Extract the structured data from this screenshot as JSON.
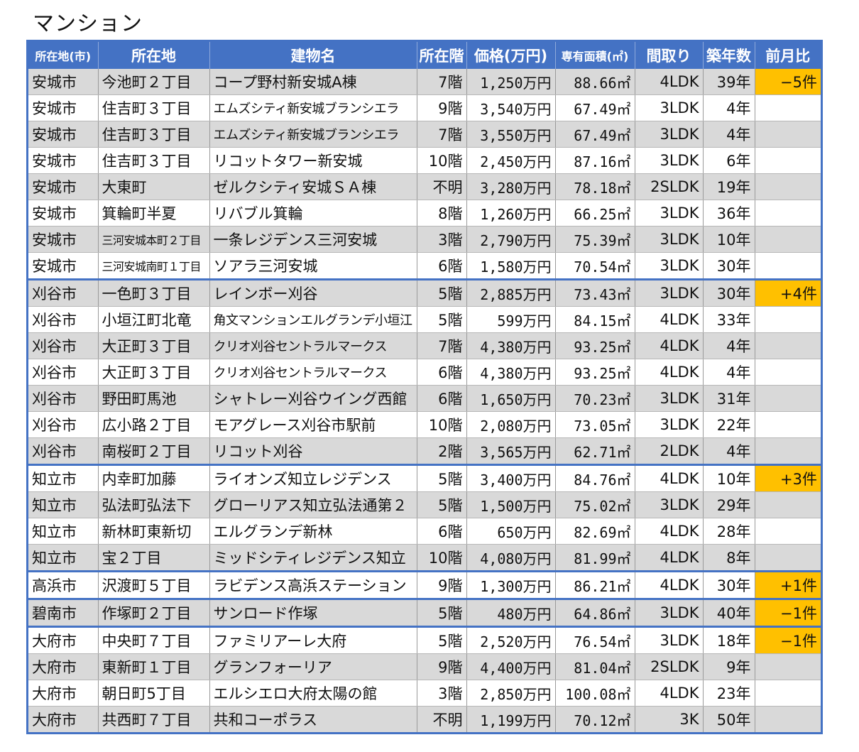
{
  "title": "マンション",
  "colors": {
    "header_bg": "#4472c4",
    "row_alt": "#d9d9d9",
    "highlight": "#ffc000"
  },
  "headers": [
    "所在地(市)",
    "所在地",
    "建物名",
    "所在階",
    "価格(万円)",
    "専有面積(㎡)",
    "間取り",
    "築年数",
    "前月比"
  ],
  "rows": [
    {
      "city": "安城市",
      "address": "今池町２丁目",
      "building": "コープ野村新安城A棟",
      "floor": "7階",
      "price": "1,250万円",
      "area": "88.66㎡",
      "layout": "4LDK",
      "age": "39年",
      "change": "−5件"
    },
    {
      "city": "安城市",
      "address": "住吉町３丁目",
      "building": "エムズシティ新安城ブランシエラ",
      "floor": "9階",
      "price": "3,540万円",
      "area": "67.49㎡",
      "layout": "3LDK",
      "age": "4年",
      "change": ""
    },
    {
      "city": "安城市",
      "address": "住吉町３丁目",
      "building": "エムズシティ新安城ブランシエラ",
      "floor": "7階",
      "price": "3,550万円",
      "area": "67.49㎡",
      "layout": "3LDK",
      "age": "4年",
      "change": ""
    },
    {
      "city": "安城市",
      "address": "住吉町３丁目",
      "building": "リコットタワー新安城",
      "floor": "10階",
      "price": "2,450万円",
      "area": "87.16㎡",
      "layout": "3LDK",
      "age": "6年",
      "change": ""
    },
    {
      "city": "安城市",
      "address": "大東町",
      "building": "ゼルクシティ安城ＳＡ棟",
      "floor": "不明",
      "price": "3,280万円",
      "area": "78.18㎡",
      "layout": "2SLDK",
      "age": "19年",
      "change": ""
    },
    {
      "city": "安城市",
      "address": "箕輪町半夏",
      "building": "リバブル箕輪",
      "floor": "8階",
      "price": "1,260万円",
      "area": "66.25㎡",
      "layout": "3LDK",
      "age": "36年",
      "change": ""
    },
    {
      "city": "安城市",
      "address": "三河安城本町２丁目",
      "building": "一条レジデンス三河安城",
      "floor": "3階",
      "price": "2,790万円",
      "area": "75.39㎡",
      "layout": "3LDK",
      "age": "10年",
      "change": ""
    },
    {
      "city": "安城市",
      "address": "三河安城南町１丁目",
      "building": "ソアラ三河安城",
      "floor": "6階",
      "price": "1,580万円",
      "area": "70.54㎡",
      "layout": "3LDK",
      "age": "30年",
      "change": ""
    },
    {
      "city": "刈谷市",
      "address": "一色町３丁目",
      "building": "レインボー刈谷",
      "floor": "5階",
      "price": "2,885万円",
      "area": "73.43㎡",
      "layout": "3LDK",
      "age": "30年",
      "change": "+4件"
    },
    {
      "city": "刈谷市",
      "address": "小垣江町北竜",
      "building": "角文マンションエルグランデ小垣江",
      "floor": "5階",
      "price": "599万円",
      "area": "84.15㎡",
      "layout": "4LDK",
      "age": "33年",
      "change": ""
    },
    {
      "city": "刈谷市",
      "address": "大正町３丁目",
      "building": "クリオ刈谷セントラルマークス",
      "floor": "7階",
      "price": "4,380万円",
      "area": "93.25㎡",
      "layout": "4LDK",
      "age": "4年",
      "change": ""
    },
    {
      "city": "刈谷市",
      "address": "大正町３丁目",
      "building": "クリオ刈谷セントラルマークス",
      "floor": "6階",
      "price": "4,380万円",
      "area": "93.25㎡",
      "layout": "4LDK",
      "age": "4年",
      "change": ""
    },
    {
      "city": "刈谷市",
      "address": "野田町馬池",
      "building": "シャトレー刈谷ウイング西館",
      "floor": "6階",
      "price": "1,650万円",
      "area": "70.23㎡",
      "layout": "3LDK",
      "age": "31年",
      "change": ""
    },
    {
      "city": "刈谷市",
      "address": "広小路２丁目",
      "building": "モアグレース刈谷市駅前",
      "floor": "10階",
      "price": "2,080万円",
      "area": "73.05㎡",
      "layout": "3LDK",
      "age": "22年",
      "change": ""
    },
    {
      "city": "刈谷市",
      "address": "南桜町２丁目",
      "building": "リコット刈谷",
      "floor": "2階",
      "price": "3,565万円",
      "area": "62.71㎡",
      "layout": "2LDK",
      "age": "4年",
      "change": ""
    },
    {
      "city": "知立市",
      "address": "内幸町加藤",
      "building": "ライオンズ知立レジデンス",
      "floor": "5階",
      "price": "3,400万円",
      "area": "84.76㎡",
      "layout": "4LDK",
      "age": "10年",
      "change": "+3件"
    },
    {
      "city": "知立市",
      "address": "弘法町弘法下",
      "building": "グローリアス知立弘法通第２",
      "floor": "5階",
      "price": "1,500万円",
      "area": "75.02㎡",
      "layout": "3LDK",
      "age": "29年",
      "change": ""
    },
    {
      "city": "知立市",
      "address": "新林町東新切",
      "building": "エルグランデ新林",
      "floor": "6階",
      "price": "650万円",
      "area": "82.69㎡",
      "layout": "4LDK",
      "age": "28年",
      "change": ""
    },
    {
      "city": "知立市",
      "address": "宝２丁目",
      "building": "ミッドシティレジデンス知立",
      "floor": "10階",
      "price": "4,080万円",
      "area": "81.99㎡",
      "layout": "4LDK",
      "age": "8年",
      "change": ""
    },
    {
      "city": "高浜市",
      "address": "沢渡町５丁目",
      "building": "ラビデンス高浜ステーション",
      "floor": "9階",
      "price": "1,300万円",
      "area": "86.21㎡",
      "layout": "4LDK",
      "age": "30年",
      "change": "+1件"
    },
    {
      "city": "碧南市",
      "address": "作塚町２丁目",
      "building": "サンロード作塚",
      "floor": "5階",
      "price": "480万円",
      "area": "64.86㎡",
      "layout": "3LDK",
      "age": "40年",
      "change": "−1件"
    },
    {
      "city": "大府市",
      "address": "中央町７丁目",
      "building": "ファミリアーレ大府",
      "floor": "5階",
      "price": "2,520万円",
      "area": "76.54㎡",
      "layout": "3LDK",
      "age": "18年",
      "change": "−1件"
    },
    {
      "city": "大府市",
      "address": "東新町１丁目",
      "building": "グランフォーリア",
      "floor": "9階",
      "price": "4,400万円",
      "area": "81.04㎡",
      "layout": "2SLDK",
      "age": "9年",
      "change": ""
    },
    {
      "city": "大府市",
      "address": "朝日町5丁目",
      "building": "エルシエロ大府太陽の館",
      "floor": "3階",
      "price": "2,850万円",
      "area": "100.08㎡",
      "layout": "4LDK",
      "age": "23年",
      "change": ""
    },
    {
      "city": "大府市",
      "address": "共西町７丁目",
      "building": "共和コーポラス",
      "floor": "不明",
      "price": "1,199万円",
      "area": "70.12㎡",
      "layout": "3K",
      "age": "50年",
      "change": ""
    }
  ]
}
